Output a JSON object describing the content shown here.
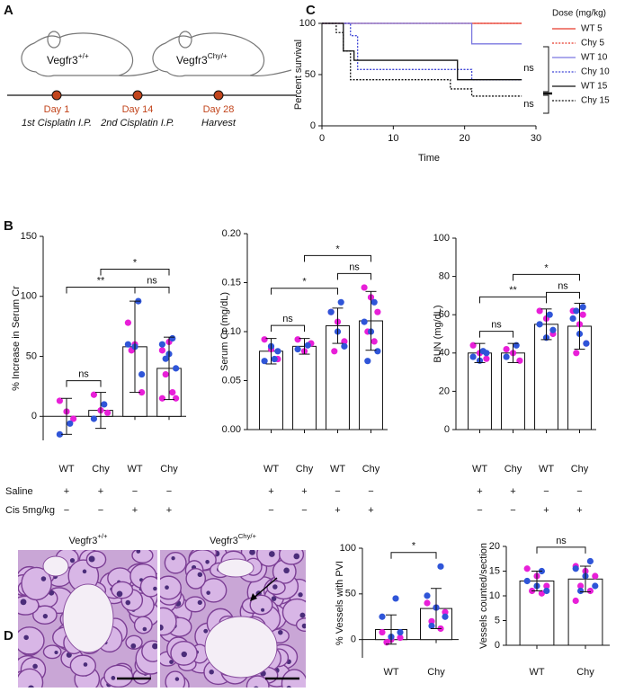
{
  "panel_labels": [
    "A",
    "B",
    "C",
    "D"
  ],
  "timeline": {
    "mice": [
      {
        "name": "Vegfr3",
        "sup": "+/+"
      },
      {
        "name": "Vegfr3",
        "sup": "Chy/+"
      }
    ],
    "events": [
      {
        "day": "Day 1",
        "label": "1st Cisplatin I.P."
      },
      {
        "day": "Day 14",
        "label": "2nd Cisplatin I.P."
      },
      {
        "day": "Day 28",
        "label": "Harvest"
      }
    ]
  },
  "micrographs": [
    {
      "name": "Vegfr3",
      "sup": "+/+"
    },
    {
      "name": "Vegfr3",
      "sup": "Chy/+"
    }
  ],
  "chart_data": [
    {
      "type": "line",
      "step": true,
      "x_label": "Time",
      "y_label": "Percent survival",
      "xlim": [
        0,
        30
      ],
      "xticks": [
        0,
        10,
        20,
        30
      ],
      "ylim": [
        0,
        100
      ],
      "yticks": [
        0,
        50,
        100
      ],
      "legend_title": "Dose (mg/kg)",
      "legend": "right",
      "annotations": [
        "ns",
        "ns"
      ],
      "series": [
        {
          "name": "WT 5",
          "color": "#e8392b",
          "dash": "solid",
          "x": [
            0,
            28
          ],
          "values": [
            100,
            100
          ]
        },
        {
          "name": "Chy 5",
          "color": "#e8392b",
          "dash": "dotted",
          "x": [
            0,
            28
          ],
          "values": [
            100,
            100
          ]
        },
        {
          "name": "WT 10",
          "color": "#7b78e0",
          "dash": "solid",
          "x": [
            0,
            21,
            28
          ],
          "values": [
            100,
            80,
            80
          ]
        },
        {
          "name": "Chy 10",
          "color": "#3f45d6",
          "dash": "dotted",
          "x": [
            0,
            4,
            5,
            21,
            28
          ],
          "values": [
            100,
            88,
            55,
            45,
            45
          ]
        },
        {
          "name": "WT 15",
          "color": "#111111",
          "dash": "solid",
          "x": [
            0,
            3,
            4.5,
            19,
            28
          ],
          "values": [
            100,
            73,
            64,
            45,
            45
          ]
        },
        {
          "name": "Chy 15",
          "color": "#111111",
          "dash": "dotted",
          "x": [
            0,
            2,
            3,
            4,
            18,
            21,
            28
          ],
          "values": [
            100,
            91,
            73,
            45,
            36,
            29,
            29
          ]
        }
      ]
    },
    {
      "type": "bar",
      "y_label": "% Increase in Serum Cr",
      "ylim": [
        -20,
        150
      ],
      "yticks": [
        0,
        50,
        100,
        150
      ],
      "categories": [
        "WT",
        "Chy",
        "WT",
        "Chy"
      ],
      "values": [
        0,
        5,
        58,
        40
      ],
      "errors": [
        15,
        15,
        38,
        26
      ],
      "color": "#ffffff",
      "dot_series": [
        {
          "color": "#e81fd8",
          "values": [
            [
              13,
              4,
              -2
            ],
            [
              18,
              5,
              3
            ],
            [
              78,
              60,
              20,
              55
            ],
            [
              55,
              62,
              15,
              35,
              20,
              15
            ]
          ]
        },
        {
          "color": "#2f55d8",
          "values": [
            [
              -6,
              -15
            ],
            [
              10,
              -2
            ],
            [
              96,
              60,
              58,
              35
            ],
            [
              65,
              60,
              52,
              40,
              48
            ]
          ]
        }
      ],
      "treatments": [
        {
          "label": "Saline",
          "signs": [
            "+",
            "+",
            "−",
            "−"
          ]
        },
        {
          "label": "Cis 5mg/kg",
          "signs": [
            "−",
            "−",
            "+",
            "+"
          ]
        }
      ],
      "comparisons": [
        {
          "between": [
            0,
            1
          ],
          "label": "ns"
        },
        {
          "between": [
            2,
            3
          ],
          "label": "ns"
        },
        {
          "between": [
            0,
            2
          ],
          "label": "**"
        },
        {
          "between": [
            1,
            3
          ],
          "label": "*"
        }
      ]
    },
    {
      "type": "bar",
      "y_label": "Serum Cr (mg/dL)",
      "ylim": [
        0,
        0.2
      ],
      "yticks": [
        {
          "value": 0,
          "label": "0.00"
        },
        {
          "value": 0.05,
          "label": "0.05"
        },
        {
          "value": 0.1,
          "label": "0.10"
        },
        {
          "value": 0.15,
          "label": "0.15"
        },
        {
          "value": 0.2,
          "label": "0.20"
        }
      ],
      "categories": [
        "WT",
        "Chy",
        "WT",
        "Chy"
      ],
      "values": [
        0.08,
        0.085,
        0.106,
        0.111
      ],
      "errors": [
        0.013,
        0.008,
        0.018,
        0.03
      ],
      "color": "#ffffff",
      "dot_series": [
        {
          "color": "#e81fd8",
          "values": [
            [
              0.092,
              0.082,
              0.072
            ],
            [
              0.092,
              0.08,
              0.088
            ],
            [
              0.12,
              0.11,
              0.09,
              0.08
            ],
            [
              0.145,
              0.135,
              0.12,
              0.1,
              0.09
            ]
          ]
        },
        {
          "color": "#2f55d8",
          "values": [
            [
              0.072,
              0.07,
              0.085,
              0.08
            ],
            [
              0.086,
              0.082
            ],
            [
              0.13,
              0.12,
              0.1,
              0.085
            ],
            [
              0.13,
              0.11,
              0.1,
              0.08,
              0.07
            ]
          ]
        }
      ],
      "treatments": [
        {
          "signs": [
            "+",
            "+",
            "−",
            "−"
          ]
        },
        {
          "signs": [
            "−",
            "−",
            "+",
            "+"
          ]
        }
      ],
      "comparisons": [
        {
          "between": [
            0,
            1
          ],
          "label": "ns"
        },
        {
          "between": [
            0,
            2
          ],
          "label": "*"
        },
        {
          "between": [
            2,
            3
          ],
          "label": "ns"
        },
        {
          "between": [
            1,
            3
          ],
          "label": "*"
        }
      ]
    },
    {
      "type": "bar",
      "y_label": "BUN (mg/dL)",
      "ylim": [
        0,
        100
      ],
      "yticks": [
        0,
        20,
        40,
        60,
        80,
        100
      ],
      "categories": [
        "WT",
        "Chy",
        "WT",
        "Chy"
      ],
      "values": [
        40,
        40,
        55,
        54
      ],
      "errors": [
        5,
        5,
        8,
        12
      ],
      "color": "#ffffff",
      "dot_series": [
        {
          "color": "#e81fd8",
          "values": [
            [
              44,
              40,
              37
            ],
            [
              42,
              40,
              36
            ],
            [
              62,
              58,
              50
            ],
            [
              62,
              55,
              45,
              40,
              60
            ]
          ]
        },
        {
          "color": "#2f55d8",
          "values": [
            [
              41,
              38,
              36,
              40
            ],
            [
              44,
              38
            ],
            [
              60,
              55,
              48,
              52
            ],
            [
              64,
              58,
              50,
              45,
              62
            ]
          ]
        }
      ],
      "treatments": [
        {
          "signs": [
            "+",
            "+",
            "−",
            "−"
          ]
        },
        {
          "signs": [
            "−",
            "−",
            "+",
            "+"
          ]
        }
      ],
      "comparisons": [
        {
          "between": [
            0,
            1
          ],
          "label": "ns"
        },
        {
          "between": [
            2,
            3
          ],
          "label": "ns"
        },
        {
          "between": [
            0,
            2
          ],
          "label": "**"
        },
        {
          "between": [
            1,
            3
          ],
          "label": "*"
        }
      ]
    },
    {
      "type": "bar",
      "y_label": "% Vessels with PVI",
      "ylim": [
        -20,
        100
      ],
      "yticks": [
        0,
        50,
        100
      ],
      "categories": [
        "WT",
        "Chy"
      ],
      "values": [
        11,
        34
      ],
      "errors": [
        16,
        22
      ],
      "color": "#ffffff",
      "dot_series": [
        {
          "color": "#e81fd8",
          "values": [
            [
              8,
              0,
              2,
              -3
            ],
            [
              40,
              35,
              30,
              20,
              12
            ]
          ]
        },
        {
          "color": "#2f55d8",
          "values": [
            [
              45,
              25,
              3,
              8
            ],
            [
              80,
              48,
              35,
              25,
              15
            ]
          ]
        }
      ],
      "comparisons": [
        {
          "between": [
            0,
            1
          ],
          "label": "*"
        }
      ]
    },
    {
      "type": "bar",
      "y_label": "Vessels counted/section",
      "ylim": [
        0,
        20
      ],
      "yticks": [
        0,
        5,
        10,
        15,
        20
      ],
      "categories": [
        "WT",
        "Chy"
      ],
      "values": [
        13,
        13.4
      ],
      "errors": [
        2,
        2.6
      ],
      "color": "#ffffff",
      "dot_series": [
        {
          "color": "#e81fd8",
          "values": [
            [
              15.5,
              14,
              12,
              11,
              10.5
            ],
            [
              16,
              15,
              14,
              12,
              11,
              9
            ]
          ]
        },
        {
          "color": "#2f55d8",
          "values": [
            [
              15,
              13,
              12,
              11
            ],
            [
              17,
              15.5,
              14,
              12,
              11
            ]
          ]
        }
      ],
      "comparisons": [
        {
          "between": [
            0,
            1
          ],
          "label": "ns"
        }
      ]
    }
  ]
}
